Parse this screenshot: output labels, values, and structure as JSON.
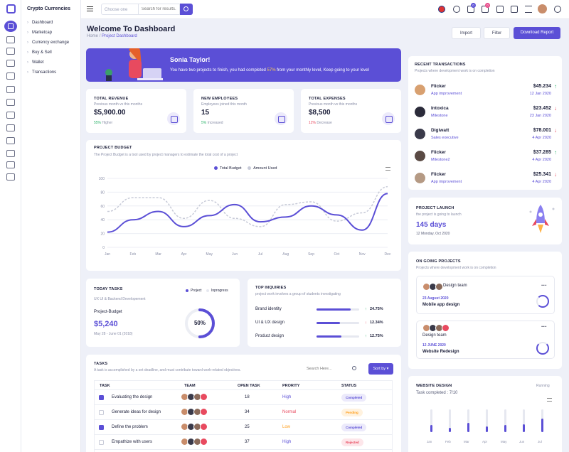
{
  "brand": "Crypto Currencies",
  "menu": [
    "Dashboard",
    "Marketcap",
    "Currency exchange",
    "Buy & Sell",
    "Wallet",
    "Transactions"
  ],
  "topbar": {
    "select": "Choose one",
    "search_placeholder": "Search for results..",
    "cart_count": "0",
    "bell_count": "0"
  },
  "header": {
    "title": "Welcome To Dashboard",
    "crumb_home": "Home",
    "crumb_sep": "/",
    "crumb_page": "Project Dashboard",
    "import": "Import",
    "filter": "Filter",
    "download": "Download Report"
  },
  "banner": {
    "name": "Sonia Taylor!",
    "text_pre": "You have two projects to finish, you had completed ",
    "pct": "57%",
    "text_post": " from your monthly level, Keep going to your level"
  },
  "stats": [
    {
      "label": "TOTAL REVENUE",
      "sub": "Previous month vs this months",
      "value": "$5,900.00",
      "pct": "55%",
      "note": "Higher",
      "color": "#2db36a"
    },
    {
      "label": "NEW EMPLOYEES",
      "sub": "Employees joined this month",
      "value": "15",
      "pct": "5%",
      "note": "Increased",
      "color": "#2db36a"
    },
    {
      "label": "TOTAL EXPENSES",
      "sub": "Previous month vs this months",
      "value": "$8,500",
      "pct": "12%",
      "note": "Decrease",
      "color": "#e84a5f"
    }
  ],
  "budget": {
    "title": "PROJECT BUDGET",
    "sub": "The Project Budget is a tool used by project managers to estimate the total cost of a project",
    "legend": [
      "Total Budget",
      "Amount Used"
    ]
  },
  "chart_data": {
    "type": "line",
    "categories": [
      "Jan",
      "Feb",
      "Mar",
      "Apr",
      "May",
      "Jun",
      "Jul",
      "Aug",
      "Sep",
      "Oct",
      "Nov",
      "Dec"
    ],
    "yticks": [
      "100",
      "80",
      "60",
      "40",
      "20",
      "0"
    ],
    "ylim": [
      0,
      100
    ],
    "series": [
      {
        "name": "Total Budget",
        "values": [
          22,
          40,
          52,
          30,
          46,
          62,
          37,
          44,
          60,
          47,
          25,
          78
        ]
      },
      {
        "name": "Amount Used",
        "values": [
          52,
          72,
          72,
          42,
          68,
          42,
          30,
          62,
          66,
          38,
          50,
          88
        ]
      }
    ],
    "colors": [
      "#5b4fd6",
      "#c8cbd8"
    ]
  },
  "rtx": {
    "title": "RECENT TRANSACTIONS",
    "sub": "Projects where development work is on completion",
    "items": [
      {
        "name": "Flicker",
        "role": "App improvement",
        "amount": "$45.234",
        "date": "12 Jan 2020",
        "up": true,
        "color": "#d8a070"
      },
      {
        "name": "Intoxica",
        "role": "Milestone",
        "amount": "$23.452",
        "date": "23 Jan 2020",
        "up": false,
        "color": "#2b2b3a"
      },
      {
        "name": "Digiwatt",
        "role": "Sales executive",
        "amount": "$78.001",
        "date": "4 Apr 2020",
        "up": false,
        "color": "#3a3a4a"
      },
      {
        "name": "Flicker",
        "role": "Milestone2",
        "amount": "$37.285",
        "date": "4 Apr 2020",
        "up": true,
        "color": "#5a4a44"
      },
      {
        "name": "Flicker",
        "role": "App improvement",
        "amount": "$25.341",
        "date": "4 Apr 2020",
        "up": false,
        "color": "#b59a84"
      }
    ]
  },
  "launch": {
    "title": "PROJECT LAUNCH",
    "sub": "the project is going to launch",
    "days": "145 days",
    "date": "12 Monday, Oct 2020"
  },
  "ongoing": {
    "title": "ON GOING PROJECTS",
    "sub": "Projects where development work is on completion",
    "items": [
      {
        "team": "Design team",
        "date": "23 August 2020",
        "name": "Mobile app design"
      },
      {
        "team": "Design team",
        "date": "12 JUNE 2020",
        "name": "Website Redesign"
      }
    ]
  },
  "today": {
    "title": "TODAY TASKS",
    "sub": "UX UI & Backend Developement",
    "legend": [
      "Project",
      "Inprogress"
    ],
    "label": "Project-Budget",
    "value": "$5,240",
    "dates": "May 28 - June 01 (2018)",
    "pct": "50%",
    "pct_value": 50
  },
  "inquiries": {
    "title": "TOP INQUIRIES",
    "sub": "project work involves a group of students investigating",
    "items": [
      {
        "name": "Brand identity",
        "pct": "24.75%",
        "value": 80,
        "up": true
      },
      {
        "name": "UI & UX design",
        "pct": "12.34%",
        "value": 55,
        "up": false
      },
      {
        "name": "Product design",
        "pct": "12.75%",
        "value": 58,
        "up": true
      }
    ]
  },
  "tasks": {
    "title": "TASKS",
    "sub": "A task is accomplished by a set deadline, and must contribute toward work-related objectives.",
    "search_placeholder": "Search Here...",
    "sort": "Sort by",
    "cols": [
      "TASK",
      "TEAM",
      "OPEN TASK",
      "PRORITY",
      "STATUS"
    ],
    "rows": [
      {
        "task": "Evaluating the design",
        "open": "18",
        "prio": "High",
        "status": "Completed",
        "checked": true
      },
      {
        "task": "Generate ideas for design",
        "open": "34",
        "prio": "Normal",
        "status": "Pending",
        "checked": false
      },
      {
        "task": "Define the problem",
        "open": "25",
        "prio": "Low",
        "status": "Completed",
        "checked": true
      },
      {
        "task": "Empathize with users",
        "open": "37",
        "prio": "High",
        "status": "Rejected",
        "checked": false
      }
    ]
  },
  "website": {
    "title": "WEBSITE DESIGN",
    "status": "Running",
    "sub": "Task completed : 7/10",
    "months": [
      "Jan",
      "Feb",
      "Mar",
      "Apr",
      "May",
      "Jun",
      "Jul"
    ],
    "values": [
      0.3,
      0.2,
      0.4,
      0.25,
      0.3,
      0.35,
      0.6
    ]
  }
}
